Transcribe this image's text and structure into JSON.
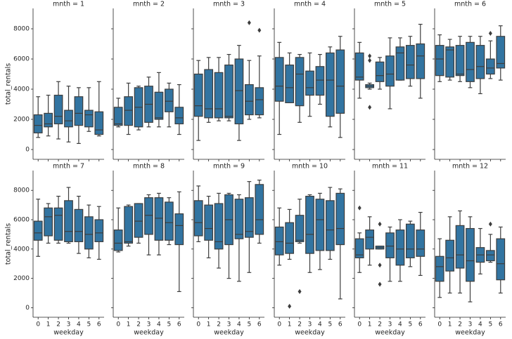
{
  "chart_data": [
    {
      "type": "box",
      "title": "mnth = 1",
      "ylabel": "total_rentals",
      "color": "#3274a1",
      "ylim": [
        -650,
        9350
      ],
      "yticks": [
        0,
        2000,
        4000,
        6000,
        8000
      ],
      "boxes": [
        {
          "whislo": 800,
          "q1": 1100,
          "med": 1600,
          "q3": 2300,
          "whishi": 3500
        },
        {
          "whislo": 900,
          "q1": 1500,
          "med": 1700,
          "q3": 2400,
          "whishi": 3600
        },
        {
          "whislo": 700,
          "q1": 1700,
          "med": 2200,
          "q3": 3600,
          "whishi": 4500
        },
        {
          "whislo": 500,
          "q1": 1500,
          "med": 1900,
          "q3": 2600,
          "whishi": 4200
        },
        {
          "whislo": 400,
          "q1": 1600,
          "med": 2400,
          "q3": 3500,
          "whishi": 4100
        },
        {
          "whislo": 1200,
          "q1": 1500,
          "med": 2300,
          "q3": 2600,
          "whishi": 4100
        },
        {
          "whislo": 900,
          "q1": 1000,
          "med": 1300,
          "q3": 2500,
          "whishi": 4500
        }
      ]
    },
    {
      "type": "box",
      "title": "mnth = 2",
      "color": "#3274a1",
      "ylim": [
        -650,
        9350
      ],
      "yticks": [
        0,
        2000,
        4000,
        6000,
        8000
      ],
      "boxes": [
        {
          "whislo": 1500,
          "q1": 1600,
          "med": 1700,
          "q3": 2800,
          "whishi": 3400
        },
        {
          "whislo": 1000,
          "q1": 1600,
          "med": 2600,
          "q3": 3500,
          "whishi": 4400
        },
        {
          "whislo": 1300,
          "q1": 1500,
          "med": 2800,
          "q3": 4100,
          "whishi": 4200
        },
        {
          "whislo": 1500,
          "q1": 1800,
          "med": 3000,
          "q3": 4200,
          "whishi": 4800
        },
        {
          "whislo": 1500,
          "q1": 2000,
          "med": 2100,
          "q3": 3800,
          "whishi": 5100
        },
        {
          "whislo": 1500,
          "q1": 2500,
          "med": 3200,
          "q3": 4000,
          "whishi": 4400
        },
        {
          "whislo": 1000,
          "q1": 1700,
          "med": 2100,
          "q3": 2800,
          "whishi": 4300
        }
      ]
    },
    {
      "type": "box",
      "title": "mnth = 3",
      "color": "#3274a1",
      "ylim": [
        -650,
        9350
      ],
      "yticks": [
        0,
        2000,
        4000,
        6000,
        8000
      ],
      "boxes": [
        {
          "whislo": 600,
          "q1": 2200,
          "med": 2900,
          "q3": 5000,
          "whishi": 5900
        },
        {
          "whislo": 1800,
          "q1": 2100,
          "med": 2700,
          "q3": 5300,
          "whishi": 6100
        },
        {
          "whislo": 1900,
          "q1": 2100,
          "med": 2700,
          "q3": 5100,
          "whishi": 6100
        },
        {
          "whislo": 1900,
          "q1": 2100,
          "med": 2200,
          "q3": 5600,
          "whishi": 6300
        },
        {
          "whislo": 600,
          "q1": 1700,
          "med": 3900,
          "q3": 6000,
          "whishi": 6900
        },
        {
          "whislo": 2000,
          "q1": 2300,
          "med": 3200,
          "q3": 4300,
          "whishi": 5900,
          "fliers": [
            8400
          ]
        },
        {
          "whislo": 2100,
          "q1": 2300,
          "med": 3300,
          "q3": 4100,
          "whishi": 6200,
          "fliers": [
            7900
          ]
        }
      ]
    },
    {
      "type": "box",
      "title": "mnth = 4",
      "color": "#3274a1",
      "ylim": [
        -650,
        9350
      ],
      "yticks": [
        0,
        2000,
        4000,
        6000,
        8000
      ],
      "boxes": [
        {
          "whislo": 1000,
          "q1": 3200,
          "med": 4200,
          "q3": 6100,
          "whishi": 7100
        },
        {
          "whislo": 3100,
          "q1": 3100,
          "med": 4100,
          "q3": 5600,
          "whishi": 6400
        },
        {
          "whislo": 1800,
          "q1": 2900,
          "med": 5000,
          "q3": 6100,
          "whishi": 6300
        },
        {
          "whislo": 2200,
          "q1": 3600,
          "med": 4100,
          "q3": 5200,
          "whishi": 6400
        },
        {
          "whislo": 3000,
          "q1": 3600,
          "med": 4600,
          "q3": 5500,
          "whishi": 6300
        },
        {
          "whislo": 1500,
          "q1": 2200,
          "med": 4600,
          "q3": 6400,
          "whishi": 6800
        },
        {
          "whislo": 800,
          "q1": 2400,
          "med": 4200,
          "q3": 6600,
          "whishi": 7500
        }
      ]
    },
    {
      "type": "box",
      "title": "mnth = 5",
      "color": "#3274a1",
      "ylim": [
        -650,
        9350
      ],
      "yticks": [
        0,
        2000,
        4000,
        6000,
        8000
      ],
      "boxes": [
        {
          "whislo": 3400,
          "q1": 4600,
          "med": 4800,
          "q3": 6400,
          "whishi": 7100
        },
        {
          "whislo": 4000,
          "q1": 4100,
          "med": 4200,
          "q3": 4300,
          "whishi": 4400,
          "fliers": [
            6200,
            5900,
            2800
          ]
        },
        {
          "whislo": 4000,
          "q1": 4500,
          "med": 4900,
          "q3": 5800,
          "whishi": 6100
        },
        {
          "whislo": 2700,
          "q1": 4200,
          "med": 5000,
          "q3": 6200,
          "whishi": 7400
        },
        {
          "whislo": 4600,
          "q1": 4600,
          "med": 6400,
          "q3": 6800,
          "whishi": 7400
        },
        {
          "whislo": 4200,
          "q1": 4700,
          "med": 5600,
          "q3": 6900,
          "whishi": 7500
        },
        {
          "whislo": 3400,
          "q1": 4700,
          "med": 6200,
          "q3": 7000,
          "whishi": 8300
        }
      ]
    },
    {
      "type": "box",
      "title": "mnth = 6",
      "color": "#3274a1",
      "ylim": [
        -650,
        9350
      ],
      "yticks": [
        0,
        2000,
        4000,
        6000,
        8000
      ],
      "boxes": [
        {
          "whislo": 4500,
          "q1": 4900,
          "med": 6000,
          "q3": 6900,
          "whishi": 7600
        },
        {
          "whislo": 4600,
          "q1": 4800,
          "med": 6600,
          "q3": 6800,
          "whishi": 7300
        },
        {
          "whislo": 4500,
          "q1": 4900,
          "med": 5000,
          "q3": 6900,
          "whishi": 7500
        },
        {
          "whislo": 4100,
          "q1": 4500,
          "med": 5300,
          "q3": 7100,
          "whishi": 7500
        },
        {
          "whislo": 3700,
          "q1": 4700,
          "med": 5500,
          "q3": 6900,
          "whishi": 7500
        },
        {
          "whislo": 4700,
          "q1": 5000,
          "med": 5400,
          "q3": 6000,
          "whishi": 7200,
          "fliers": [
            7700
          ]
        },
        {
          "whislo": 4600,
          "q1": 5400,
          "med": 5700,
          "q3": 7500,
          "whishi": 8200
        }
      ]
    },
    {
      "type": "box",
      "title": "mnth = 7",
      "ylabel": "total_rentals",
      "xlabel": "weekday",
      "categories": [
        "0",
        "1",
        "2",
        "3",
        "4",
        "5",
        "6"
      ],
      "color": "#3274a1",
      "ylim": [
        -650,
        9350
      ],
      "yticks": [
        0,
        2000,
        4000,
        6000,
        8000
      ],
      "boxes": [
        {
          "whislo": 3500,
          "q1": 4600,
          "med": 5100,
          "q3": 5900,
          "whishi": 7400
        },
        {
          "whislo": 4400,
          "q1": 4900,
          "med": 6200,
          "q3": 6800,
          "whishi": 7100
        },
        {
          "whislo": 4400,
          "q1": 4600,
          "med": 6300,
          "q3": 6800,
          "whishi": 7600
        },
        {
          "whislo": 4400,
          "q1": 4500,
          "med": 5200,
          "q3": 7300,
          "whishi": 8200
        },
        {
          "whislo": 3700,
          "q1": 4500,
          "med": 5200,
          "q3": 6700,
          "whishi": 7600
        },
        {
          "whislo": 3400,
          "q1": 4000,
          "med": 5000,
          "q3": 6200,
          "whishi": 7000
        },
        {
          "whislo": 3300,
          "q1": 4500,
          "med": 5100,
          "q3": 6000,
          "whishi": 6900
        }
      ]
    },
    {
      "type": "box",
      "title": "mnth = 8",
      "xlabel": "weekday",
      "categories": [
        "0",
        "1",
        "2",
        "3",
        "4",
        "5",
        "6"
      ],
      "color": "#3274a1",
      "ylim": [
        -650,
        9350
      ],
      "yticks": [
        0,
        2000,
        4000,
        6000,
        8000
      ],
      "boxes": [
        {
          "whislo": 3800,
          "q1": 3900,
          "med": 4400,
          "q3": 5300,
          "whishi": 6800
        },
        {
          "whislo": 4200,
          "q1": 4400,
          "med": 4500,
          "q3": 6900,
          "whishi": 7000
        },
        {
          "whislo": 4400,
          "q1": 4800,
          "med": 5900,
          "q3": 7100,
          "whishi": 7100
        },
        {
          "whislo": 3600,
          "q1": 5000,
          "med": 6300,
          "q3": 7500,
          "whishi": 7700
        },
        {
          "whislo": 3600,
          "q1": 4600,
          "med": 6100,
          "q3": 7500,
          "whishi": 7800
        },
        {
          "whislo": 4300,
          "q1": 4600,
          "med": 5800,
          "q3": 7200,
          "whishi": 7500
        },
        {
          "whislo": 1100,
          "q1": 4300,
          "med": 5600,
          "q3": 6400,
          "whishi": 7900
        }
      ]
    },
    {
      "type": "box",
      "title": "mnth = 9",
      "xlabel": "weekday",
      "categories": [
        "0",
        "1",
        "2",
        "3",
        "4",
        "5",
        "6"
      ],
      "color": "#3274a1",
      "ylim": [
        -650,
        9350
      ],
      "yticks": [
        0,
        2000,
        4000,
        6000,
        8000
      ],
      "boxes": [
        {
          "whislo": 4500,
          "q1": 4900,
          "med": 5800,
          "q3": 7300,
          "whishi": 8300
        },
        {
          "whislo": 3400,
          "q1": 4600,
          "med": 5400,
          "q3": 7000,
          "whishi": 7600
        },
        {
          "whislo": 2700,
          "q1": 4000,
          "med": 4500,
          "q3": 7100,
          "whishi": 7800
        },
        {
          "whislo": 2000,
          "q1": 4300,
          "med": 6000,
          "q3": 7700,
          "whishi": 7800
        },
        {
          "whislo": 1800,
          "q1": 4700,
          "med": 5000,
          "q3": 7400,
          "whishi": 7700
        },
        {
          "whislo": 2400,
          "q1": 4800,
          "med": 5200,
          "q3": 7500,
          "whishi": 8600
        },
        {
          "whislo": 4400,
          "q1": 5000,
          "med": 6000,
          "q3": 8400,
          "whishi": 8700
        }
      ]
    },
    {
      "type": "box",
      "title": "mnth = 10",
      "xlabel": "weekday",
      "categories": [
        "0",
        "1",
        "2",
        "3",
        "4",
        "5",
        "6"
      ],
      "color": "#3274a1",
      "ylim": [
        -650,
        9350
      ],
      "yticks": [
        0,
        2000,
        4000,
        6000,
        8000
      ],
      "boxes": [
        {
          "whislo": 2900,
          "q1": 3600,
          "med": 4500,
          "q3": 5500,
          "whishi": 6800
        },
        {
          "whislo": 3300,
          "q1": 3700,
          "med": 4400,
          "q3": 5800,
          "whishi": 6700,
          "fliers": [
            100
          ]
        },
        {
          "whislo": 4400,
          "q1": 4500,
          "med": 4600,
          "q3": 6300,
          "whishi": 7400,
          "fliers": [
            1100
          ]
        },
        {
          "whislo": 2400,
          "q1": 3700,
          "med": 5000,
          "q3": 7600,
          "whishi": 7700
        },
        {
          "whislo": 2600,
          "q1": 3900,
          "med": 6000,
          "q3": 7400,
          "whishi": 7800
        },
        {
          "whislo": 3300,
          "q1": 3900,
          "med": 5300,
          "q3": 7300,
          "whishi": 8200
        },
        {
          "whislo": 600,
          "q1": 4300,
          "med": 5400,
          "q3": 7800,
          "whishi": 8100
        }
      ]
    },
    {
      "type": "box",
      "title": "mnth = 11",
      "xlabel": "weekday",
      "categories": [
        "0",
        "1",
        "2",
        "3",
        "4",
        "5",
        "6"
      ],
      "color": "#3274a1",
      "ylim": [
        -650,
        9350
      ],
      "yticks": [
        0,
        2000,
        4000,
        6000,
        8000
      ],
      "boxes": [
        {
          "whislo": 2400,
          "q1": 3400,
          "med": 3600,
          "q3": 4700,
          "whishi": 5100,
          "fliers": [
            6800
          ]
        },
        {
          "whislo": 2900,
          "q1": 4000,
          "med": 4800,
          "q3": 5300,
          "whishi": 6200
        },
        {
          "whislo": 4000,
          "q1": 4000,
          "med": 4100,
          "q3": 4200,
          "whishi": 4200,
          "fliers": [
            5700,
            2900,
            1600
          ]
        },
        {
          "whislo": 1800,
          "q1": 3400,
          "med": 4200,
          "q3": 5100,
          "whishi": 5500
        },
        {
          "whislo": 1800,
          "q1": 2900,
          "med": 4000,
          "q3": 5300,
          "whishi": 6000
        },
        {
          "whislo": 2800,
          "q1": 3400,
          "med": 4000,
          "q3": 5700,
          "whishi": 5900
        },
        {
          "whislo": 2200,
          "q1": 3500,
          "med": 4000,
          "q3": 5300,
          "whishi": 6500
        }
      ]
    },
    {
      "type": "box",
      "title": "mnth = 12",
      "xlabel": "weekday",
      "categories": [
        "0",
        "1",
        "2",
        "3",
        "4",
        "5",
        "6"
      ],
      "color": "#3274a1",
      "ylim": [
        -650,
        9350
      ],
      "yticks": [
        0,
        2000,
        4000,
        6000,
        8000
      ],
      "boxes": [
        {
          "whislo": 700,
          "q1": 1800,
          "med": 2800,
          "q3": 3500,
          "whishi": 4700
        },
        {
          "whislo": 1000,
          "q1": 2500,
          "med": 3400,
          "q3": 4600,
          "whishi": 6200
        },
        {
          "whislo": 1000,
          "q1": 2700,
          "med": 3600,
          "q3": 5600,
          "whishi": 6600
        },
        {
          "whislo": 400,
          "q1": 1800,
          "med": 3200,
          "q3": 5400,
          "whishi": 6200
        },
        {
          "whislo": 2300,
          "q1": 3100,
          "med": 3600,
          "q3": 4100,
          "whishi": 5400
        },
        {
          "whislo": 3100,
          "q1": 3200,
          "med": 3600,
          "q3": 3900,
          "whishi": 5000,
          "fliers": [
            5700
          ]
        },
        {
          "whislo": 1000,
          "q1": 1900,
          "med": 3000,
          "q3": 4700,
          "whishi": 5500
        }
      ]
    }
  ]
}
